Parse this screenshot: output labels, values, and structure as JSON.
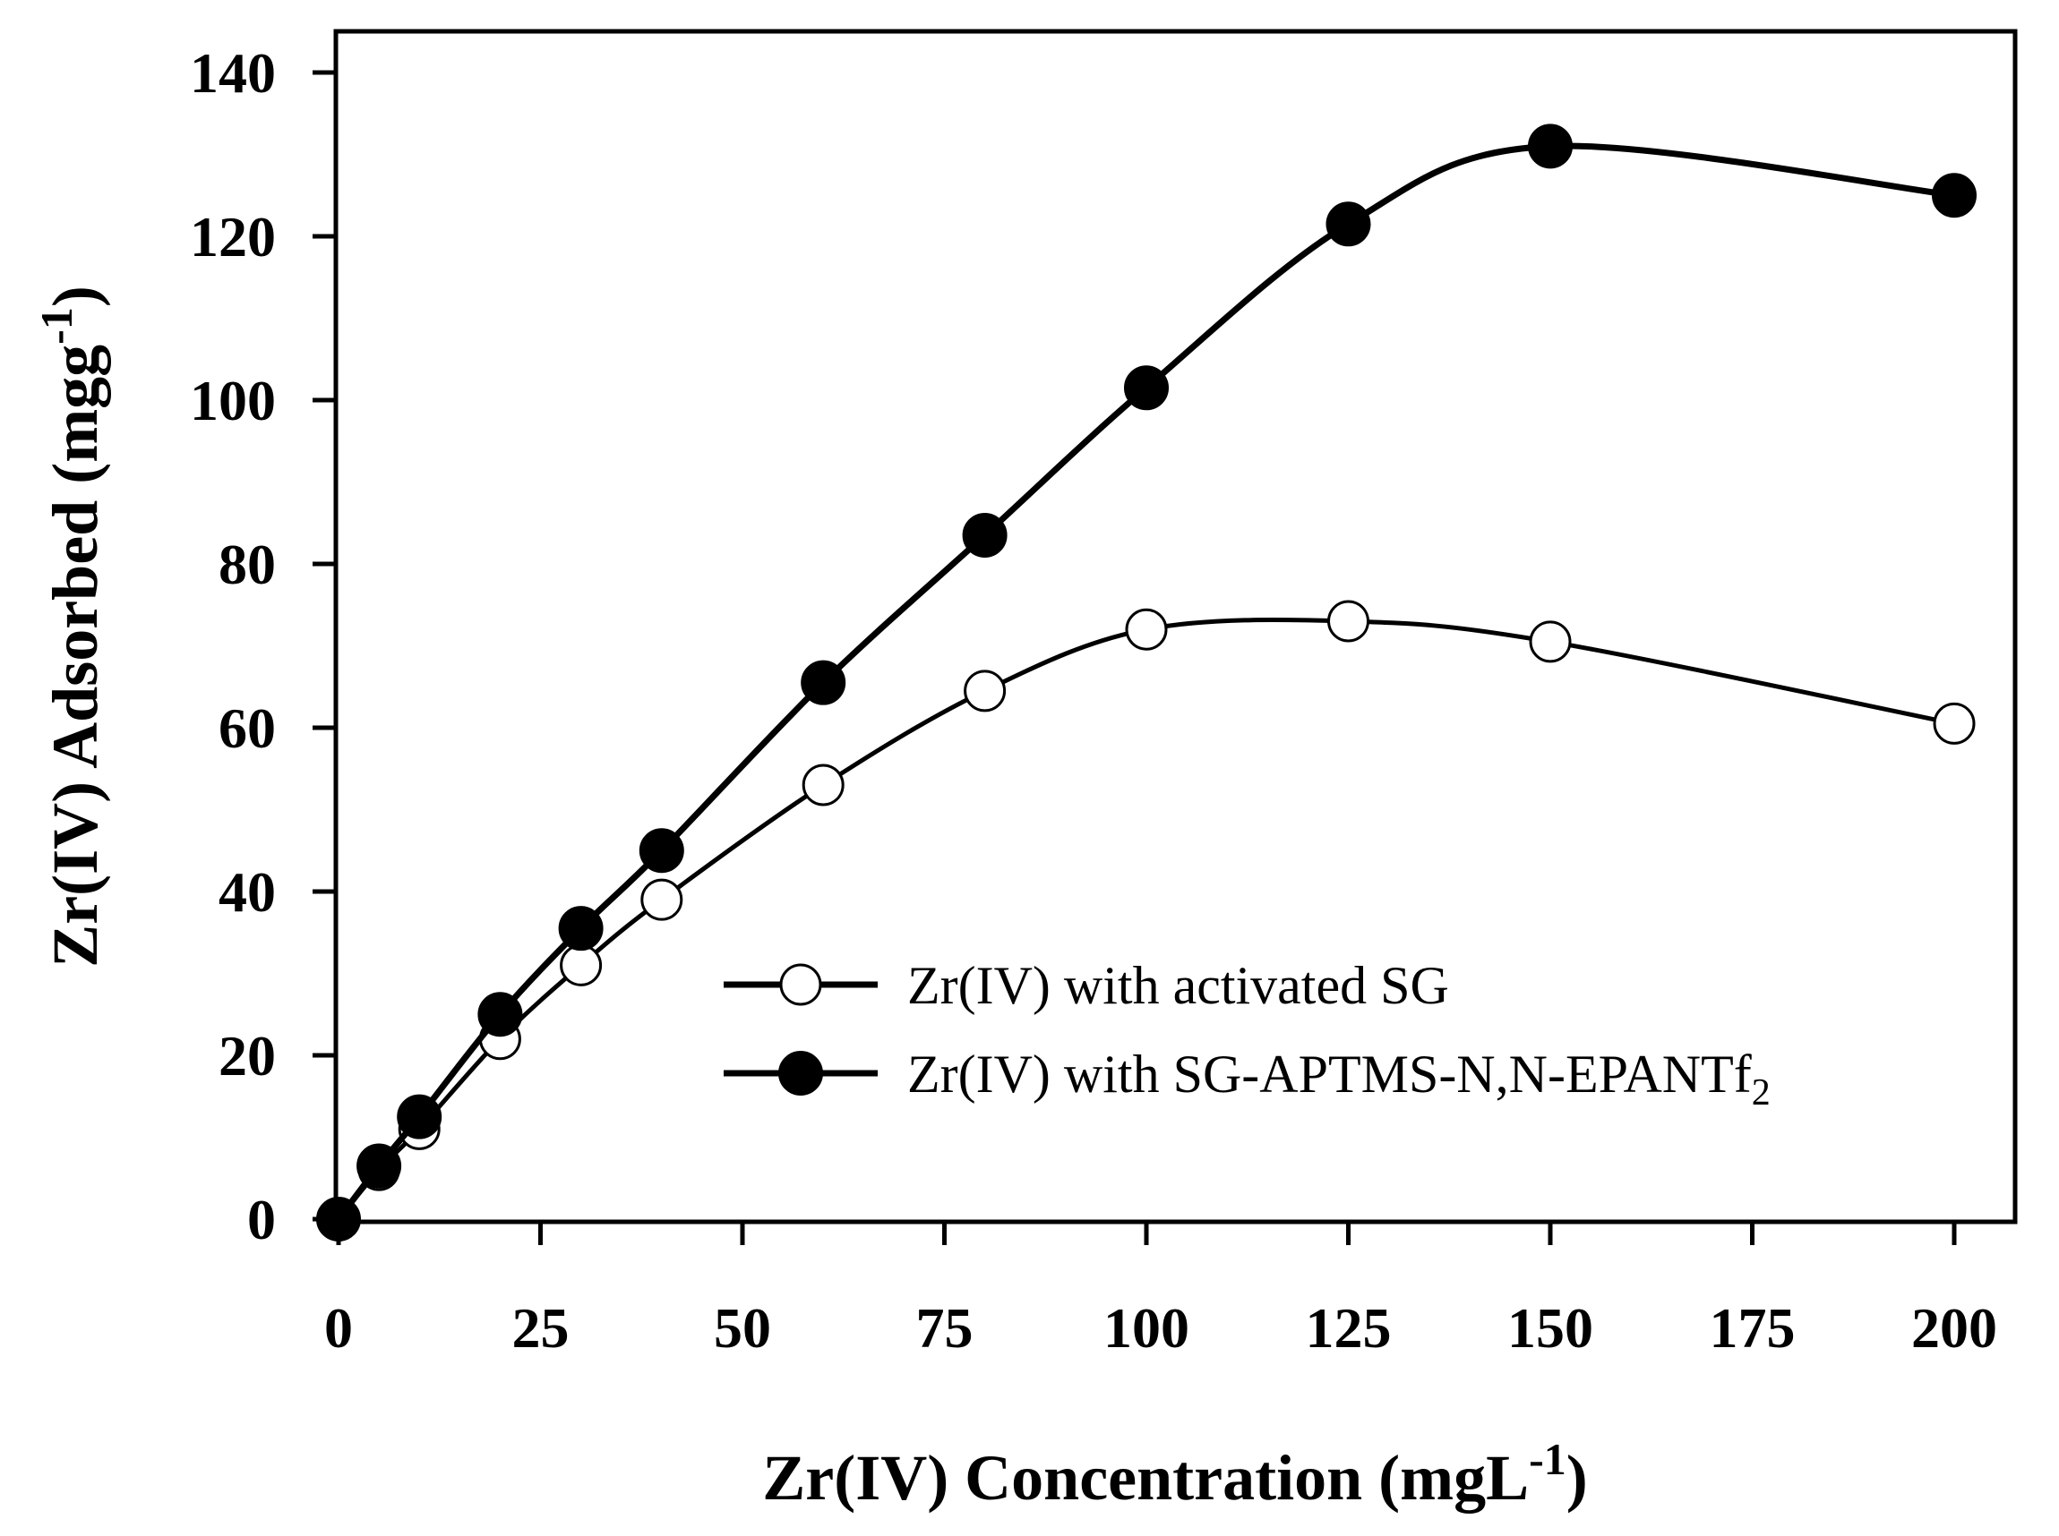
{
  "chart_data": {
    "type": "line",
    "title": "",
    "xlabel": {
      "main": "Zr(IV) Concentration (mgL",
      "sup": "-1",
      "end": ")"
    },
    "ylabel": {
      "main": "Zr(IV) Adsorbed (mgg",
      "sup": "-1",
      "end": ")"
    },
    "xlim": [
      0,
      200
    ],
    "ylim": [
      0,
      140
    ],
    "xticks": [
      "0",
      "25",
      "50",
      "75",
      "100",
      "125",
      "150",
      "175",
      "200"
    ],
    "xtick_values": [
      0,
      25,
      50,
      75,
      100,
      125,
      150,
      175,
      200
    ],
    "yticks": [
      "0",
      "20",
      "40",
      "60",
      "80",
      "100",
      "120",
      "140"
    ],
    "ytick_values": [
      0,
      20,
      40,
      60,
      80,
      100,
      120,
      140
    ],
    "grid": false,
    "legend_position": "lower-right",
    "series": [
      {
        "name": "Zr(IV) with activated SG",
        "name_sub": "",
        "marker": "open-circle",
        "color": "#000000",
        "x": [
          0,
          5,
          10,
          20,
          30,
          40,
          60,
          80,
          100,
          125,
          150,
          200
        ],
        "y": [
          0,
          6,
          11,
          22,
          31,
          39,
          53,
          64.5,
          72,
          73,
          70.5,
          60.5
        ]
      },
      {
        "name": "Zr(IV) with SG-APTMS-N,N-EPANTf",
        "name_sub": "2",
        "marker": "filled-circle",
        "color": "#000000",
        "x": [
          0,
          5,
          10,
          20,
          30,
          40,
          60,
          80,
          100,
          125,
          150,
          200
        ],
        "y": [
          0,
          6.5,
          12.5,
          25,
          35.5,
          45,
          65.5,
          83.5,
          101.5,
          121.5,
          131,
          125
        ]
      }
    ]
  }
}
